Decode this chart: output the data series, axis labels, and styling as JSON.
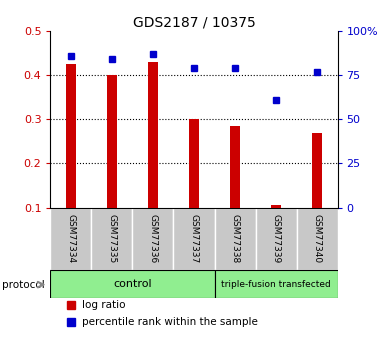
{
  "title": "GDS2187 / 10375",
  "samples": [
    "GSM77334",
    "GSM77335",
    "GSM77336",
    "GSM77337",
    "GSM77338",
    "GSM77339",
    "GSM77340"
  ],
  "log_ratio": [
    0.425,
    0.4,
    0.43,
    0.3,
    0.285,
    0.105,
    0.27
  ],
  "percentile_rank": [
    86,
    84,
    87,
    79,
    79,
    61,
    77
  ],
  "ylim_left": [
    0.1,
    0.5
  ],
  "ylim_right": [
    0,
    100
  ],
  "yticks_left": [
    0.1,
    0.2,
    0.3,
    0.4,
    0.5
  ],
  "yticks_right": [
    0,
    25,
    50,
    75,
    100
  ],
  "ytick_labels_right": [
    "0",
    "25",
    "50",
    "75",
    "100%"
  ],
  "bar_color": "#cc0000",
  "dot_color": "#0000cc",
  "protocol_groups": [
    {
      "label": "control",
      "start": 0,
      "end": 3,
      "color": "#90ee90"
    },
    {
      "label": "triple-fusion transfected",
      "start": 4,
      "end": 6,
      "color": "#90ee90"
    }
  ],
  "protocol_label": "protocol",
  "legend_bar_label": "log ratio",
  "legend_dot_label": "percentile rank within the sample",
  "sample_box_color": "#c8c8c8",
  "control_count": 4,
  "transfected_count": 3
}
